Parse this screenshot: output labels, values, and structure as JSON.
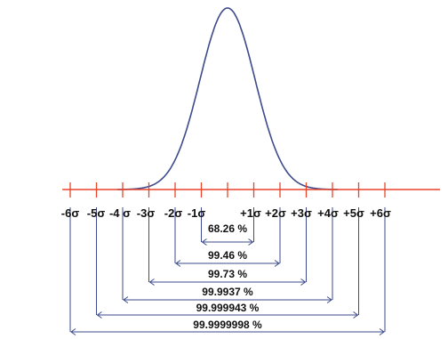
{
  "chart_data": {
    "type": "line",
    "title": "",
    "xlabel": "",
    "ylabel": "",
    "xlim": [
      -6.3,
      8.1
    ],
    "curve": "normal-distribution",
    "ticks": [
      -6,
      -5,
      -4,
      -3,
      -2,
      -1,
      0,
      1,
      2,
      3,
      4,
      5,
      6
    ],
    "tick_labels": [
      {
        "value": -6,
        "text": "-6σ"
      },
      {
        "value": -5,
        "text": "-5σ"
      },
      {
        "value": -4,
        "text": "-4 σ"
      },
      {
        "value": -3,
        "text": "-3σ"
      },
      {
        "value": -2,
        "text": "-2σ"
      },
      {
        "value": -1,
        "text": "-1σ"
      },
      {
        "value": 1,
        "text": "+1σ"
      },
      {
        "value": 2,
        "text": "+2σ"
      },
      {
        "value": 3,
        "text": "+3σ"
      },
      {
        "value": 4,
        "text": "+4σ"
      },
      {
        "value": 5,
        "text": "+5σ"
      },
      {
        "value": 6,
        "text": "+6σ"
      }
    ],
    "ranges": [
      {
        "k": 1,
        "label": "68.26 %"
      },
      {
        "k": 2,
        "label": "99.46 %"
      },
      {
        "k": 3,
        "label": "99.73 %"
      },
      {
        "k": 4,
        "label": "99.9937 %"
      },
      {
        "k": 5,
        "label": "99.999943 %"
      },
      {
        "k": 6,
        "label": "99.9999998 %"
      }
    ],
    "colors": {
      "curve": "#3d4a8c",
      "axis": "#e8442a",
      "ticks": "#e8442a",
      "brackets": "#3d4a8c",
      "text": "#111111"
    }
  }
}
